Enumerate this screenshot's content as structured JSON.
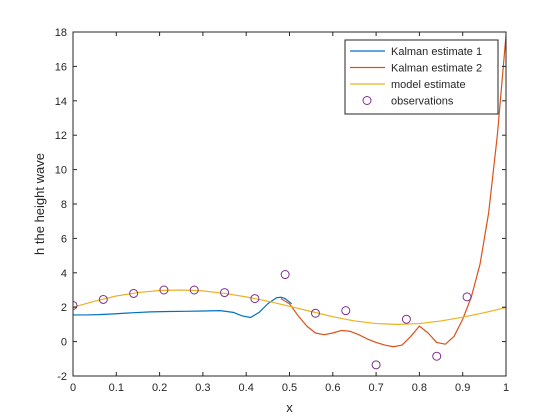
{
  "chart_data": {
    "type": "line",
    "title": "",
    "xlabel": "x",
    "ylabel": "h the height wave",
    "xlim": [
      0,
      1
    ],
    "ylim": [
      -2,
      18
    ],
    "xticks": [
      0,
      0.1,
      0.2,
      0.3,
      0.4,
      0.5,
      0.6,
      0.7,
      0.8,
      0.9,
      1
    ],
    "xtick_labels": [
      "0",
      "0.1",
      "0.2",
      "0.3",
      "0.4",
      "0.5",
      "0.6",
      "0.7",
      "0.8",
      "0.9",
      "1"
    ],
    "yticks": [
      -2,
      0,
      2,
      4,
      6,
      8,
      10,
      12,
      14,
      16,
      18
    ],
    "ytick_labels": [
      "-2",
      "0",
      "2",
      "4",
      "6",
      "8",
      "10",
      "12",
      "14",
      "16",
      "18"
    ],
    "grid": false,
    "legend_position": "top-right",
    "series": [
      {
        "name": "Kalman estimate 1",
        "kind": "line",
        "color": "#0072BD",
        "x": [
          0,
          0.03,
          0.06,
          0.1,
          0.14,
          0.18,
          0.22,
          0.26,
          0.3,
          0.34,
          0.37,
          0.39,
          0.41,
          0.43,
          0.45,
          0.47,
          0.48,
          0.49,
          0.5,
          0.505
        ],
        "y": [
          1.55,
          1.55,
          1.57,
          1.62,
          1.68,
          1.73,
          1.75,
          1.76,
          1.78,
          1.8,
          1.7,
          1.5,
          1.4,
          1.7,
          2.2,
          2.55,
          2.58,
          2.5,
          2.3,
          2.2
        ]
      },
      {
        "name": "Kalman estimate 2",
        "kind": "line",
        "color": "#D95319",
        "x": [
          0.48,
          0.5,
          0.52,
          0.54,
          0.56,
          0.58,
          0.6,
          0.62,
          0.64,
          0.66,
          0.68,
          0.7,
          0.72,
          0.74,
          0.76,
          0.78,
          0.8,
          0.82,
          0.84,
          0.86,
          0.88,
          0.9,
          0.92,
          0.94,
          0.96,
          0.98,
          1.0
        ],
        "y": [
          2.5,
          2.2,
          1.5,
          0.9,
          0.5,
          0.4,
          0.5,
          0.65,
          0.6,
          0.4,
          0.15,
          -0.05,
          -0.2,
          -0.3,
          -0.2,
          0.3,
          0.9,
          0.5,
          -0.05,
          -0.15,
          0.3,
          1.3,
          2.6,
          4.5,
          7.5,
          12.0,
          17.8
        ]
      },
      {
        "name": "model estimate",
        "kind": "line",
        "color": "#EDB120",
        "x": [
          0,
          0.05,
          0.1,
          0.15,
          0.2,
          0.25,
          0.3,
          0.35,
          0.4,
          0.45,
          0.5,
          0.55,
          0.6,
          0.65,
          0.7,
          0.75,
          0.8,
          0.85,
          0.9,
          0.95,
          1.0
        ],
        "y": [
          2.0,
          2.35,
          2.65,
          2.85,
          2.97,
          3.0,
          2.95,
          2.8,
          2.6,
          2.35,
          2.05,
          1.75,
          1.45,
          1.2,
          1.05,
          1.0,
          1.05,
          1.2,
          1.42,
          1.68,
          1.98
        ]
      },
      {
        "name": "observations",
        "kind": "marker",
        "color": "#7E2F8E",
        "x": [
          0,
          0.07,
          0.14,
          0.21,
          0.28,
          0.35,
          0.42,
          0.49,
          0.56,
          0.63,
          0.7,
          0.77,
          0.84,
          0.91
        ],
        "y": [
          2.1,
          2.45,
          2.8,
          3.0,
          3.0,
          2.85,
          2.5,
          3.9,
          1.65,
          1.8,
          -1.35,
          1.3,
          -0.85,
          2.6
        ]
      }
    ]
  }
}
